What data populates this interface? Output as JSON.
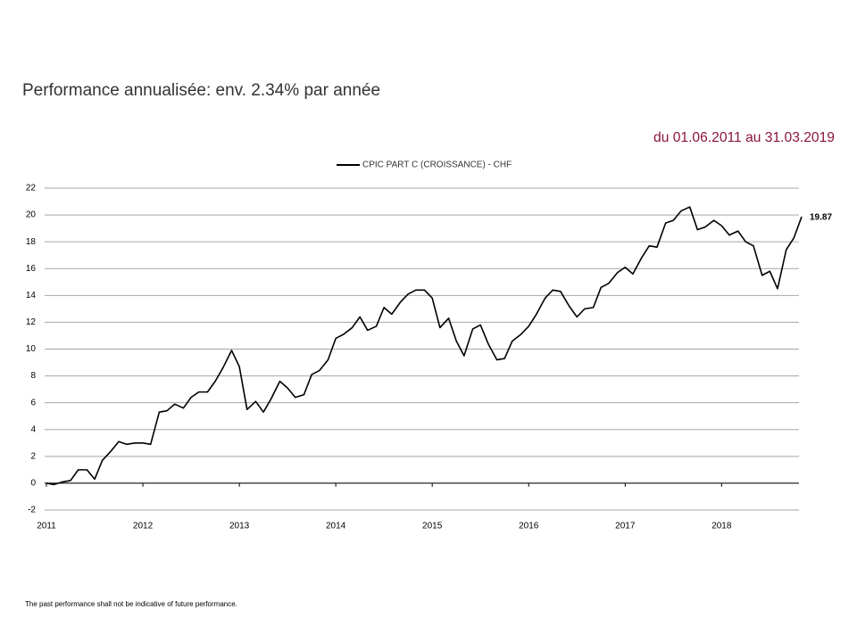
{
  "title": "Performance annualisée: env. 2.34% par année",
  "period": "du 01.06.2011 au 31.03.2019",
  "footnote": "The past performance shall not be indicative of future performance.",
  "chart_data": {
    "type": "line",
    "x": [
      2011,
      2011.08,
      2011.17,
      2011.25,
      2011.33,
      2011.42,
      2011.5,
      2011.58,
      2011.67,
      2011.75,
      2011.83,
      2011.92,
      2012,
      2012.08,
      2012.17,
      2012.25,
      2012.33,
      2012.42,
      2012.5,
      2012.58,
      2012.67,
      2012.75,
      2012.83,
      2012.92,
      2013,
      2013.08,
      2013.17,
      2013.25,
      2013.33,
      2013.42,
      2013.5,
      2013.58,
      2013.67,
      2013.75,
      2013.83,
      2013.92,
      2014,
      2014.08,
      2014.17,
      2014.25,
      2014.33,
      2014.42,
      2014.5,
      2014.58,
      2014.67,
      2014.75,
      2014.83,
      2014.92,
      2015,
      2015.08,
      2015.17,
      2015.25,
      2015.33,
      2015.42,
      2015.5,
      2015.58,
      2015.67,
      2015.75,
      2015.83,
      2015.92,
      2016,
      2016.08,
      2016.17,
      2016.25,
      2016.33,
      2016.42,
      2016.5,
      2016.58,
      2016.67,
      2016.75,
      2016.83,
      2016.92,
      2017,
      2017.08,
      2017.17,
      2017.25,
      2017.33,
      2017.42,
      2017.5,
      2017.58,
      2017.67,
      2017.75,
      2017.83,
      2017.92,
      2018,
      2018.08,
      2018.17,
      2018.25,
      2018.33,
      2018.42,
      2018.5,
      2018.58,
      2018.67,
      2018.75,
      2018.83
    ],
    "series": [
      {
        "name": "CPIC PART C (CROISSANCE) - CHF",
        "color": "#000000",
        "values": [
          0.0,
          -0.1,
          0.1,
          0.2,
          1.0,
          1.0,
          0.3,
          1.7,
          2.4,
          3.1,
          2.9,
          3.0,
          3.0,
          2.9,
          5.3,
          5.4,
          5.9,
          5.6,
          6.4,
          6.8,
          6.8,
          7.6,
          8.6,
          9.9,
          8.7,
          5.5,
          6.1,
          5.3,
          6.3,
          7.6,
          7.1,
          6.4,
          6.6,
          8.1,
          8.4,
          9.2,
          10.8,
          11.1,
          11.6,
          12.4,
          11.4,
          11.7,
          13.1,
          12.6,
          13.5,
          14.1,
          14.4,
          14.4,
          13.8,
          11.6,
          12.3,
          10.6,
          9.5,
          11.5,
          11.8,
          10.4,
          9.2,
          9.3,
          10.6,
          11.1,
          11.7,
          12.6,
          13.8,
          14.4,
          14.3,
          13.2,
          12.4,
          13.0,
          13.1,
          14.6,
          14.9,
          15.7,
          16.1,
          15.6,
          16.8,
          17.7,
          17.6,
          19.4,
          19.6,
          20.3,
          20.6,
          18.9,
          19.1,
          19.6,
          19.2,
          18.5,
          18.8,
          18.0,
          17.7,
          15.5,
          15.8,
          14.5,
          17.4,
          18.3,
          19.87
        ]
      }
    ],
    "xlim": [
      2011,
      2018.83
    ],
    "xticks": [
      2011,
      2012,
      2013,
      2014,
      2015,
      2016,
      2017,
      2018
    ],
    "ylim": [
      -2,
      22
    ],
    "yticks": [
      -2,
      0,
      2,
      4,
      6,
      8,
      10,
      12,
      14,
      16,
      18,
      20,
      22
    ],
    "grid": true,
    "legend": "top"
  }
}
